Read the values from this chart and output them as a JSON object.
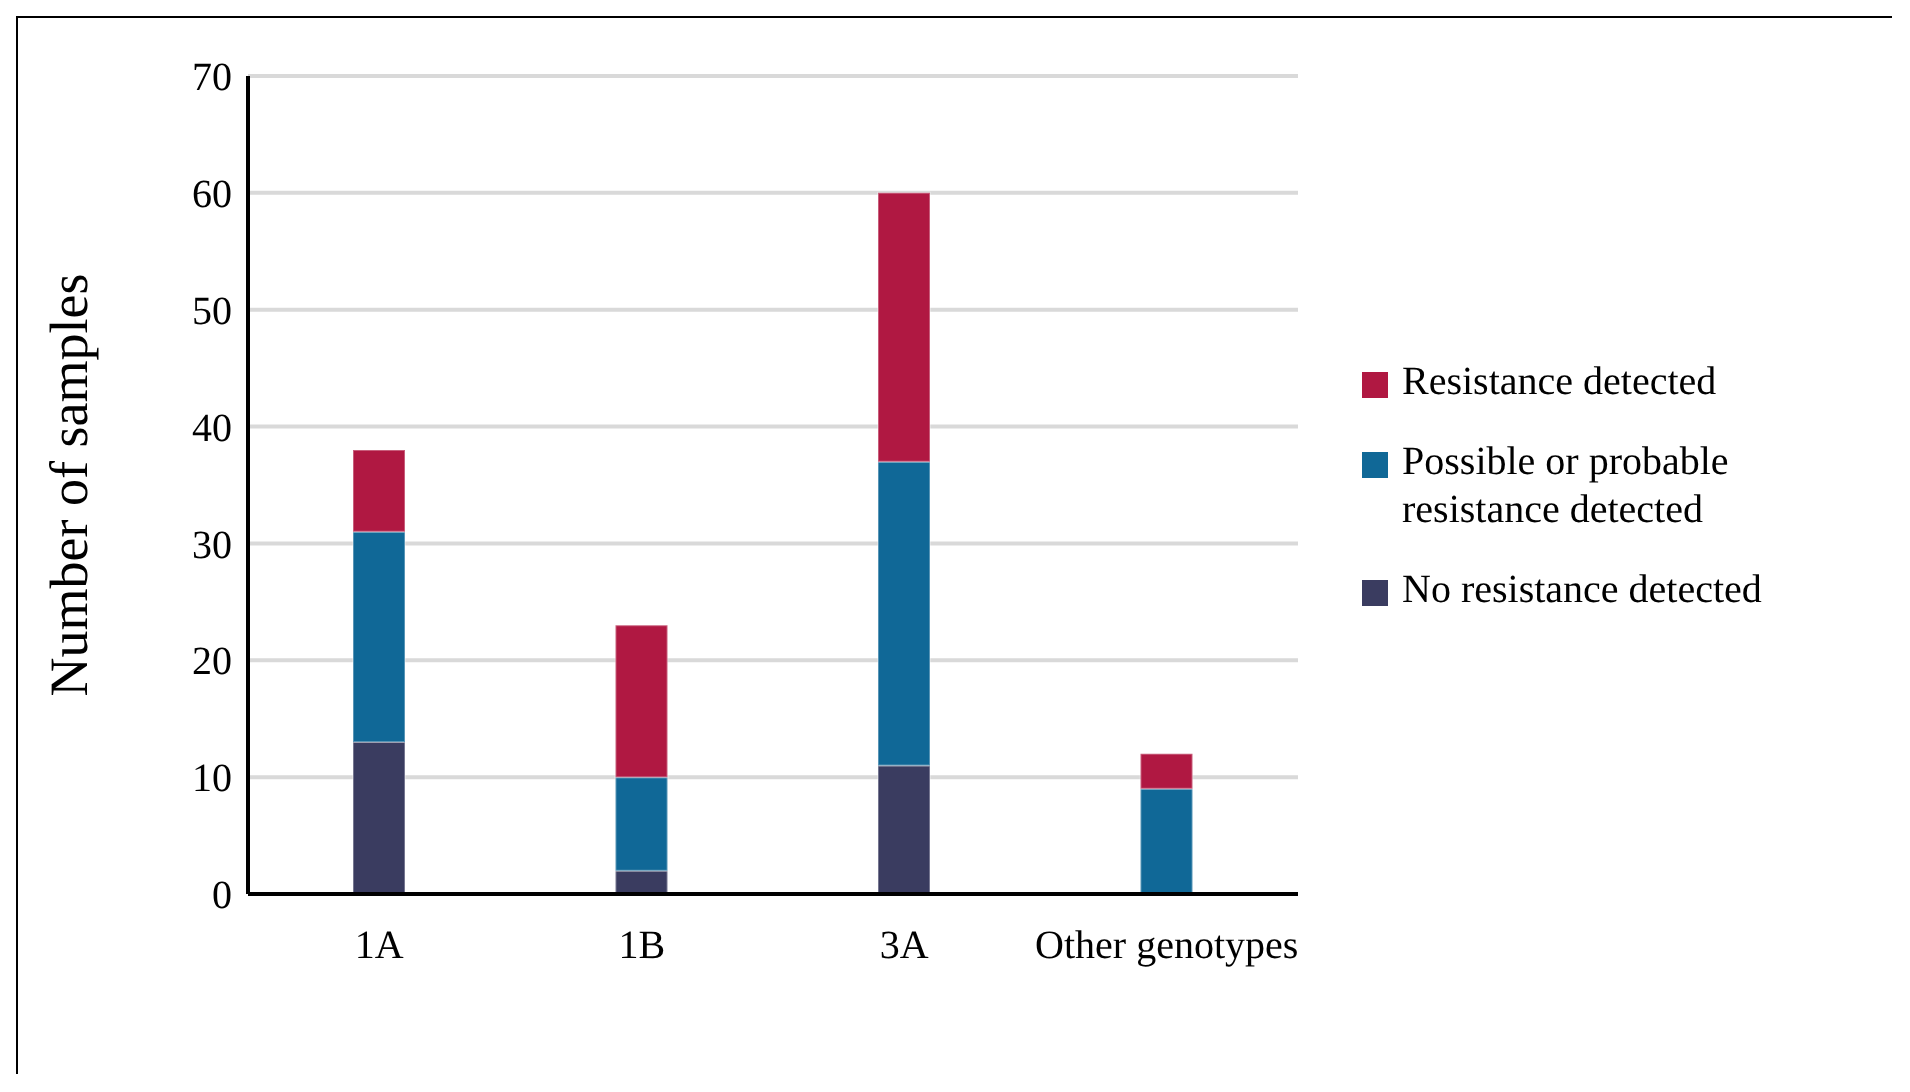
{
  "chart_data": {
    "type": "bar",
    "stacked": true,
    "ylabel": "Number of samples",
    "categories": [
      "1A",
      "1B",
      "3A",
      "Other genotypes"
    ],
    "series": [
      {
        "name": "No resistance detected",
        "color": "#3a3c60",
        "values": [
          13,
          2,
          11,
          0
        ]
      },
      {
        "name": "Possible or probable resistance detected",
        "color": "#106897",
        "values": [
          18,
          8,
          26,
          9
        ]
      },
      {
        "name": "Resistance detected",
        "color": "#b01842",
        "values": [
          7,
          13,
          23,
          3
        ]
      }
    ],
    "ylim": [
      0,
      70
    ],
    "yticks": [
      0,
      10,
      20,
      30,
      40,
      50,
      60,
      70
    ],
    "grid": "y",
    "legend": "right"
  }
}
